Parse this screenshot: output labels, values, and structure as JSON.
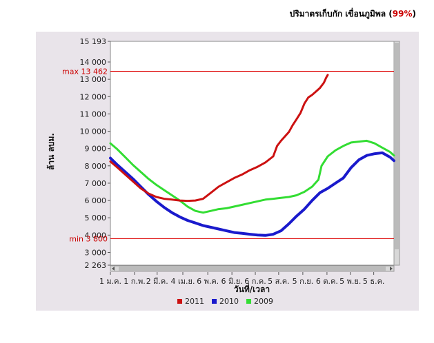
{
  "header": {
    "title": "ปริมาตรเก็บกัก เขื่อนภูมิพล",
    "pct_open": "(",
    "pct_value": "99%",
    "pct_close": ")"
  },
  "colors": {
    "2011": "#cc1111",
    "2010": "#1a1acc",
    "2009": "#33dd33",
    "reference": "#dd0000",
    "panel": "#e9e4ea"
  },
  "chart_data": {
    "type": "line",
    "title": "ปริมาตรเก็บกัก เขื่อนภูมิพล (99%)",
    "xlabel": "วันที่/เวลา",
    "ylabel": "ล้าน ลบม.",
    "ylim": [
      2263,
      15193
    ],
    "xlim": [
      1,
      365
    ],
    "x_unit": "day of year",
    "yticks": [
      "15 193",
      "14 000",
      "13 000",
      "12 000",
      "11 000",
      "10 000",
      "9 000",
      "8 000",
      "7 000",
      "6 000",
      "5 000",
      "4 000",
      "3 000",
      "2 263"
    ],
    "ytick_values": [
      15193,
      14000,
      13000,
      12000,
      11000,
      10000,
      9000,
      8000,
      7000,
      6000,
      5000,
      4000,
      3000,
      2263
    ],
    "xticks": [
      {
        "label": "1 ม.ค.",
        "day": 1
      },
      {
        "label": "1 ก.พ.",
        "day": 32
      },
      {
        "label": "2 มี.ค.",
        "day": 61
      },
      {
        "label": "4 เม.ย.",
        "day": 94
      },
      {
        "label": "6 พ.ค.",
        "day": 126
      },
      {
        "label": "6 มิ.ย.",
        "day": 157
      },
      {
        "label": "6 ก.ค.",
        "day": 187
      },
      {
        "label": "5 ส.ค.",
        "day": 217
      },
      {
        "label": "5 ก.ย.",
        "day": 248
      },
      {
        "label": "6 ต.ค.",
        "day": 279
      },
      {
        "label": "5 พ.ย.",
        "day": 309
      },
      {
        "label": "5 ธ.ค.",
        "day": 339
      }
    ],
    "reference_lines": [
      {
        "label": "max 13 462",
        "value": 13462
      },
      {
        "label": "min 3 800",
        "value": 3800
      }
    ],
    "legend_position": "bottom",
    "grid": false,
    "series": [
      {
        "name": "2011",
        "x": [
          1,
          10,
          20,
          30,
          40,
          50,
          60,
          70,
          80,
          90,
          100,
          110,
          120,
          130,
          140,
          150,
          160,
          170,
          180,
          190,
          200,
          210,
          215,
          220,
          225,
          230,
          235,
          240,
          245,
          250,
          255,
          260,
          265,
          270,
          275,
          278,
          280
        ],
        "values": [
          8250,
          7900,
          7500,
          7100,
          6700,
          6400,
          6200,
          6100,
          6050,
          6000,
          5980,
          6000,
          6100,
          6450,
          6800,
          7050,
          7300,
          7500,
          7750,
          7950,
          8200,
          8550,
          9150,
          9450,
          9700,
          9950,
          10350,
          10700,
          11050,
          11600,
          11950,
          12100,
          12300,
          12500,
          12800,
          13100,
          13250
        ]
      },
      {
        "name": "2010",
        "x": [
          1,
          10,
          20,
          30,
          40,
          50,
          60,
          70,
          80,
          90,
          100,
          110,
          120,
          130,
          140,
          150,
          160,
          170,
          180,
          190,
          200,
          210,
          220,
          230,
          240,
          250,
          260,
          270,
          280,
          290,
          300,
          310,
          320,
          330,
          340,
          350,
          360,
          365
        ],
        "values": [
          8450,
          8050,
          7650,
          7250,
          6800,
          6350,
          5950,
          5600,
          5300,
          5050,
          4850,
          4700,
          4550,
          4450,
          4350,
          4250,
          4150,
          4100,
          4050,
          4000,
          3980,
          4050,
          4250,
          4650,
          5100,
          5500,
          6000,
          6450,
          6700,
          7000,
          7300,
          7900,
          8350,
          8600,
          8700,
          8750,
          8500,
          8300
        ]
      },
      {
        "name": "2009",
        "x": [
          1,
          10,
          20,
          30,
          40,
          50,
          60,
          70,
          80,
          90,
          100,
          110,
          120,
          130,
          140,
          150,
          160,
          170,
          180,
          190,
          200,
          210,
          220,
          230,
          240,
          250,
          260,
          268,
          272,
          280,
          290,
          300,
          310,
          320,
          330,
          340,
          350,
          360,
          365
        ],
        "values": [
          9300,
          8950,
          8500,
          8050,
          7650,
          7250,
          6900,
          6600,
          6300,
          6000,
          5650,
          5400,
          5300,
          5400,
          5500,
          5550,
          5650,
          5750,
          5850,
          5950,
          6050,
          6100,
          6150,
          6200,
          6300,
          6500,
          6800,
          7200,
          8000,
          8550,
          8900,
          9150,
          9350,
          9400,
          9450,
          9300,
          9050,
          8800,
          8600
        ]
      }
    ]
  }
}
